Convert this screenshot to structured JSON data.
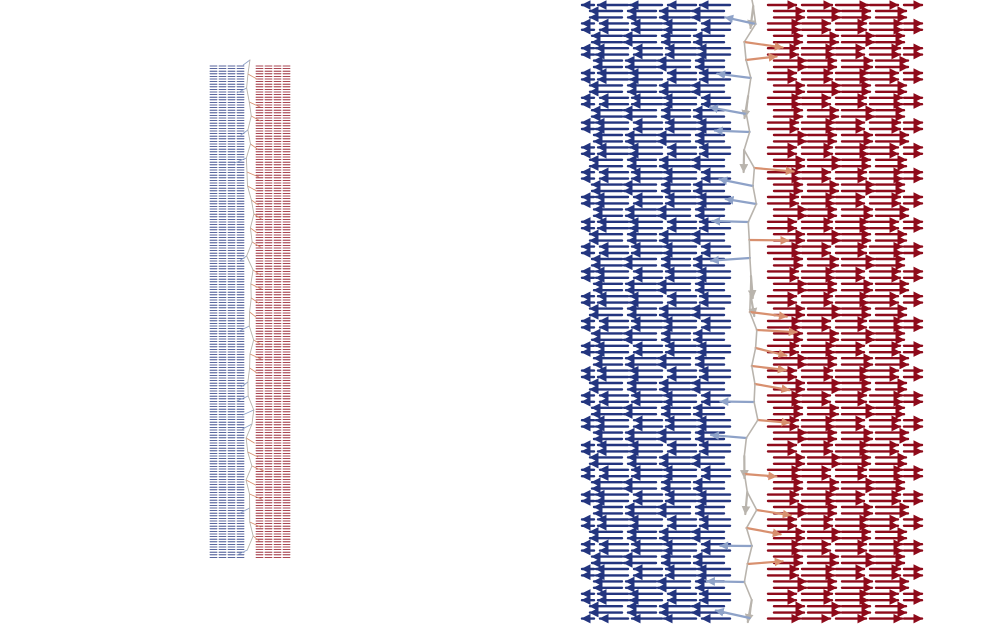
{
  "figure": {
    "panels": [
      {
        "name": "overview-panel",
        "description_visible_text": ""
      },
      {
        "name": "zoomed-panel",
        "description_visible_text": ""
      }
    ],
    "colors": {
      "left_domain": "#23357f",
      "right_domain": "#8e0a1a",
      "wall_cool": "#8ea2c8",
      "wall_neutral": "#b9b4ad",
      "wall_warm": "#d8906f",
      "background": "#ffffff"
    },
    "icon": "arrow-vector-field"
  }
}
